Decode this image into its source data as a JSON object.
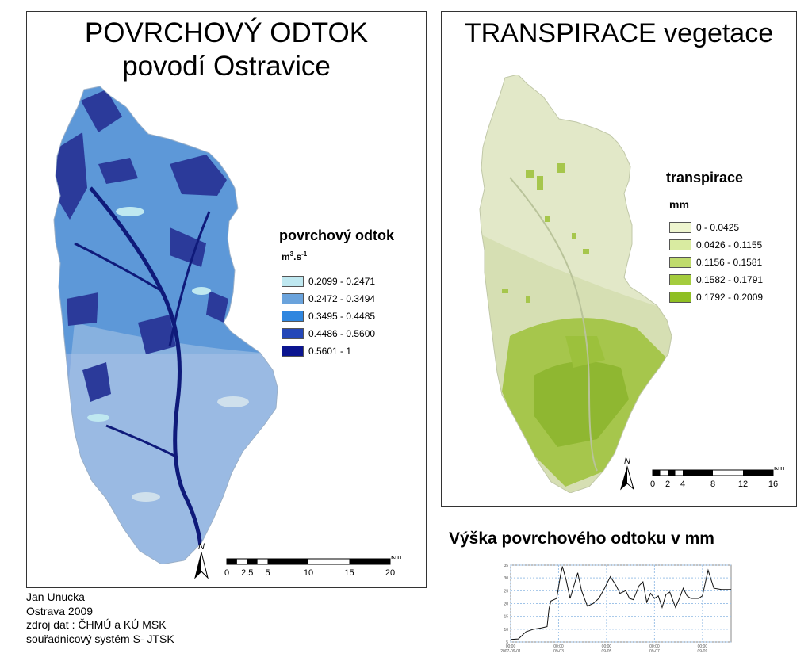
{
  "left_map": {
    "title_line1": "POVRCHOVÝ ODTOK",
    "title_line2": "povodí Ostravice",
    "legend_title": "povrchový odtok",
    "legend_unit_base": "m",
    "legend_unit_sup1": "3",
    "legend_unit_mid": ".s",
    "legend_unit_sup2": "-1",
    "legend": [
      {
        "label": "0.2099 - 0.2471",
        "color": "#bfe8f0"
      },
      {
        "label": "0.2472 - 0.3494",
        "color": "#6aa3dc"
      },
      {
        "label": "0.3495 - 0.4485",
        "color": "#2f86df"
      },
      {
        "label": "0.4486 - 0.5600",
        "color": "#2447b8"
      },
      {
        "label": "0.5601 - 1",
        "color": "#0b1590"
      }
    ],
    "north": "N",
    "scale_unit": "km",
    "scale_labels": [
      "0",
      "2.5",
      "5",
      "10",
      "15",
      "20"
    ]
  },
  "right_map": {
    "title": "TRANSPIRACE vegetace",
    "legend_title": "transpirace",
    "legend_unit": "mm",
    "legend": [
      {
        "label": "0 - 0.0425",
        "color": "#eef5cf"
      },
      {
        "label": "0.0426 - 0.1155",
        "color": "#d9eba1"
      },
      {
        "label": "0.1156 - 0.1581",
        "color": "#bfdb6c"
      },
      {
        "label": "0.1582 - 0.1791",
        "color": "#a4cc3d"
      },
      {
        "label": "0.1792 - 0.2009",
        "color": "#8fbf23"
      }
    ],
    "north": "N",
    "scale_unit": "km",
    "scale_labels": [
      "0",
      "2",
      "4",
      "8",
      "12",
      "16"
    ]
  },
  "chart": {
    "title": "Výška povrchového odtoku v mm"
  },
  "credits": {
    "author": "Jan Unucka",
    "place_year": "Ostrava 2009",
    "data_source": "zdroj dat : ČHMÚ a KÚ MSK",
    "crs": "souřadnicový systém S- JTSK"
  },
  "chart_data": {
    "type": "line",
    "title": "Výška povrchového odtoku v mm",
    "x_tick_labels": [
      "00:00 2007-09-01",
      "00:00 09-03",
      "00:00 09-05",
      "00:00 09-07",
      "00:00 09-09"
    ],
    "y_tick_labels": [
      "5",
      "10",
      "15",
      "20",
      "25",
      "30",
      "35"
    ],
    "ylim": [
      5,
      35
    ],
    "grid": true,
    "series": [
      {
        "values": [
          [
            0,
            6
          ],
          [
            0.04,
            6.2
          ],
          [
            0.08,
            9
          ],
          [
            0.12,
            10
          ],
          [
            0.16,
            10.5
          ],
          [
            0.19,
            11
          ],
          [
            0.2,
            18
          ],
          [
            0.21,
            21
          ],
          [
            0.24,
            22
          ],
          [
            0.26,
            31
          ],
          [
            0.27,
            34.5
          ],
          [
            0.29,
            29
          ],
          [
            0.31,
            22
          ],
          [
            0.33,
            27
          ],
          [
            0.35,
            32
          ],
          [
            0.37,
            25
          ],
          [
            0.4,
            19
          ],
          [
            0.43,
            20
          ],
          [
            0.46,
            22
          ],
          [
            0.49,
            26
          ],
          [
            0.52,
            30.5
          ],
          [
            0.55,
            27
          ],
          [
            0.57,
            24
          ],
          [
            0.6,
            25
          ],
          [
            0.62,
            22
          ],
          [
            0.64,
            21.5
          ],
          [
            0.67,
            27
          ],
          [
            0.69,
            28.5
          ],
          [
            0.71,
            20.5
          ],
          [
            0.73,
            24
          ],
          [
            0.75,
            22
          ],
          [
            0.77,
            23
          ],
          [
            0.79,
            18.5
          ],
          [
            0.81,
            23.5
          ],
          [
            0.83,
            24.5
          ],
          [
            0.86,
            18.5
          ],
          [
            0.88,
            22
          ],
          [
            0.9,
            26
          ],
          [
            0.92,
            23
          ],
          [
            0.94,
            22
          ],
          [
            0.96,
            22
          ],
          [
            0.98,
            22
          ],
          [
            1.0,
            23
          ],
          [
            1.03,
            33
          ],
          [
            1.06,
            26
          ],
          [
            1.1,
            25.5
          ],
          [
            1.15,
            25.5
          ]
        ]
      }
    ]
  }
}
